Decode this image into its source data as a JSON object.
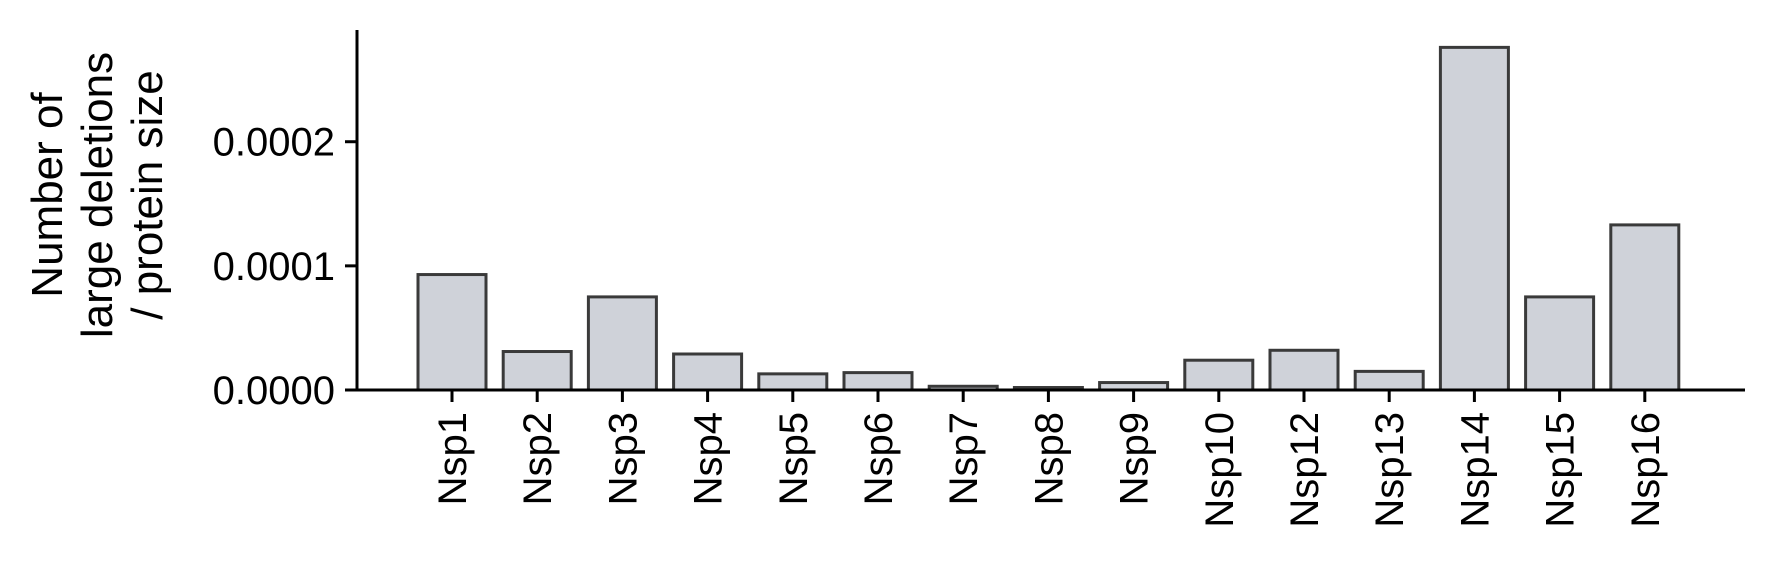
{
  "chart_data": {
    "type": "bar",
    "categories": [
      "Nsp1",
      "Nsp2",
      "Nsp3",
      "Nsp4",
      "Nsp5",
      "Nsp6",
      "Nsp7",
      "Nsp8",
      "Nsp9",
      "Nsp10",
      "Nsp12",
      "Nsp13",
      "Nsp14",
      "Nsp15",
      "Nsp16"
    ],
    "values": [
      9.3e-05,
      3.1e-05,
      7.5e-05,
      2.9e-05,
      1.3e-05,
      1.4e-05,
      3e-06,
      2e-06,
      6e-06,
      2.4e-05,
      3.2e-05,
      1.5e-05,
      0.000276,
      7.5e-05,
      0.000133
    ],
    "ylabel": [
      "Number of",
      "large deletions",
      "/ protein size"
    ],
    "ytick_labels": [
      "0.0000",
      "0.0001",
      "0.0002"
    ],
    "ytick_values": [
      0,
      0.0001,
      0.0002
    ],
    "ylim": [
      0,
      0.00029
    ],
    "grid": false,
    "colors": {
      "bar_fill": "#cfd2d9",
      "bar_stroke": "#3a3a3a",
      "axis": "#000000"
    }
  }
}
